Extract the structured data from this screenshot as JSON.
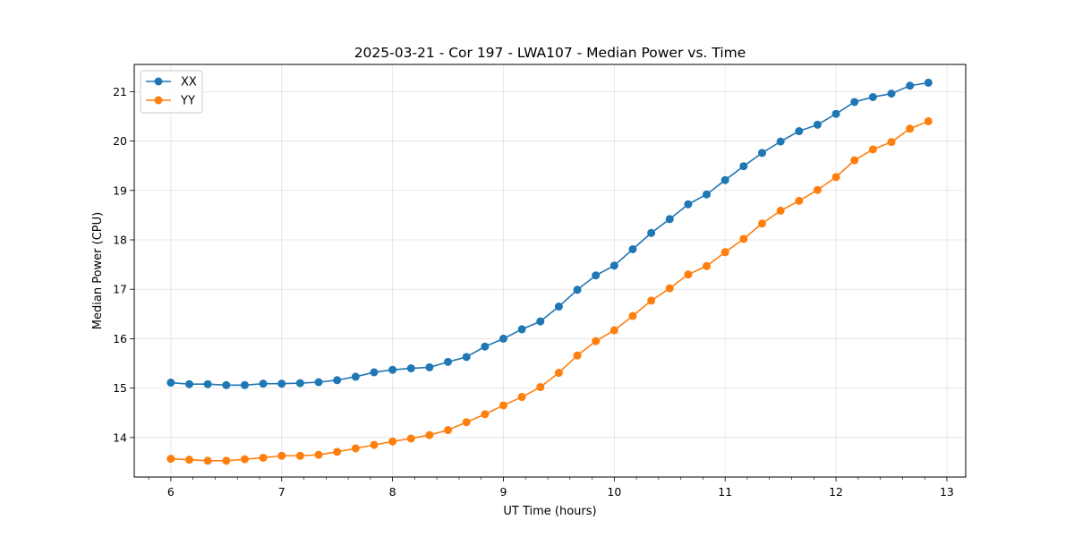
{
  "chart_data": {
    "type": "line",
    "title": "2025-03-21 - Cor 197 - LWA107 - Median Power vs. Time",
    "xlabel": "UT Time (hours)",
    "ylabel": "Median Power (CPU)",
    "xlim": [
      5.67,
      13.17
    ],
    "ylim": [
      13.2,
      21.55
    ],
    "grid": true,
    "legend_position": "top-left",
    "xticks": [
      6,
      7,
      8,
      9,
      10,
      11,
      12,
      13
    ],
    "yticks": [
      14,
      15,
      16,
      17,
      18,
      19,
      20,
      21
    ],
    "x": [
      6.0,
      6.1667,
      6.3333,
      6.5,
      6.6667,
      6.8333,
      7.0,
      7.1667,
      7.3333,
      7.5,
      7.6667,
      7.8333,
      8.0,
      8.1667,
      8.3333,
      8.5,
      8.6667,
      8.8333,
      9.0,
      9.1667,
      9.3333,
      9.5,
      9.6667,
      9.8333,
      10.0,
      10.1667,
      10.3333,
      10.5,
      10.6667,
      10.8333,
      11.0,
      11.1667,
      11.3333,
      11.5,
      11.6667,
      11.8333,
      12.0,
      12.1667,
      12.3333,
      12.5,
      12.6667,
      12.8333
    ],
    "series": [
      {
        "name": "XX",
        "color": "#1f77b4",
        "values": [
          15.11,
          15.08,
          15.08,
          15.06,
          15.06,
          15.09,
          15.09,
          15.1,
          15.12,
          15.16,
          15.23,
          15.32,
          15.37,
          15.4,
          15.42,
          15.53,
          15.63,
          15.84,
          16.0,
          16.19,
          16.35,
          16.65,
          16.99,
          17.28,
          17.48,
          17.81,
          18.14,
          18.42,
          18.72,
          18.92,
          19.21,
          19.49,
          19.76,
          19.99,
          20.2,
          20.33,
          20.55,
          20.79,
          20.89,
          20.96,
          21.12,
          21.18
        ]
      },
      {
        "name": "YY",
        "color": "#ff7f0e",
        "values": [
          13.57,
          13.55,
          13.53,
          13.53,
          13.56,
          13.59,
          13.63,
          13.63,
          13.65,
          13.71,
          13.78,
          13.85,
          13.92,
          13.98,
          14.05,
          14.15,
          14.31,
          14.47,
          14.65,
          14.82,
          15.02,
          15.31,
          15.66,
          15.95,
          16.17,
          16.46,
          16.77,
          17.02,
          17.3,
          17.47,
          17.75,
          18.02,
          18.33,
          18.59,
          18.79,
          19.01,
          19.27,
          19.61,
          19.83,
          19.98,
          20.25,
          20.4
        ]
      }
    ]
  }
}
